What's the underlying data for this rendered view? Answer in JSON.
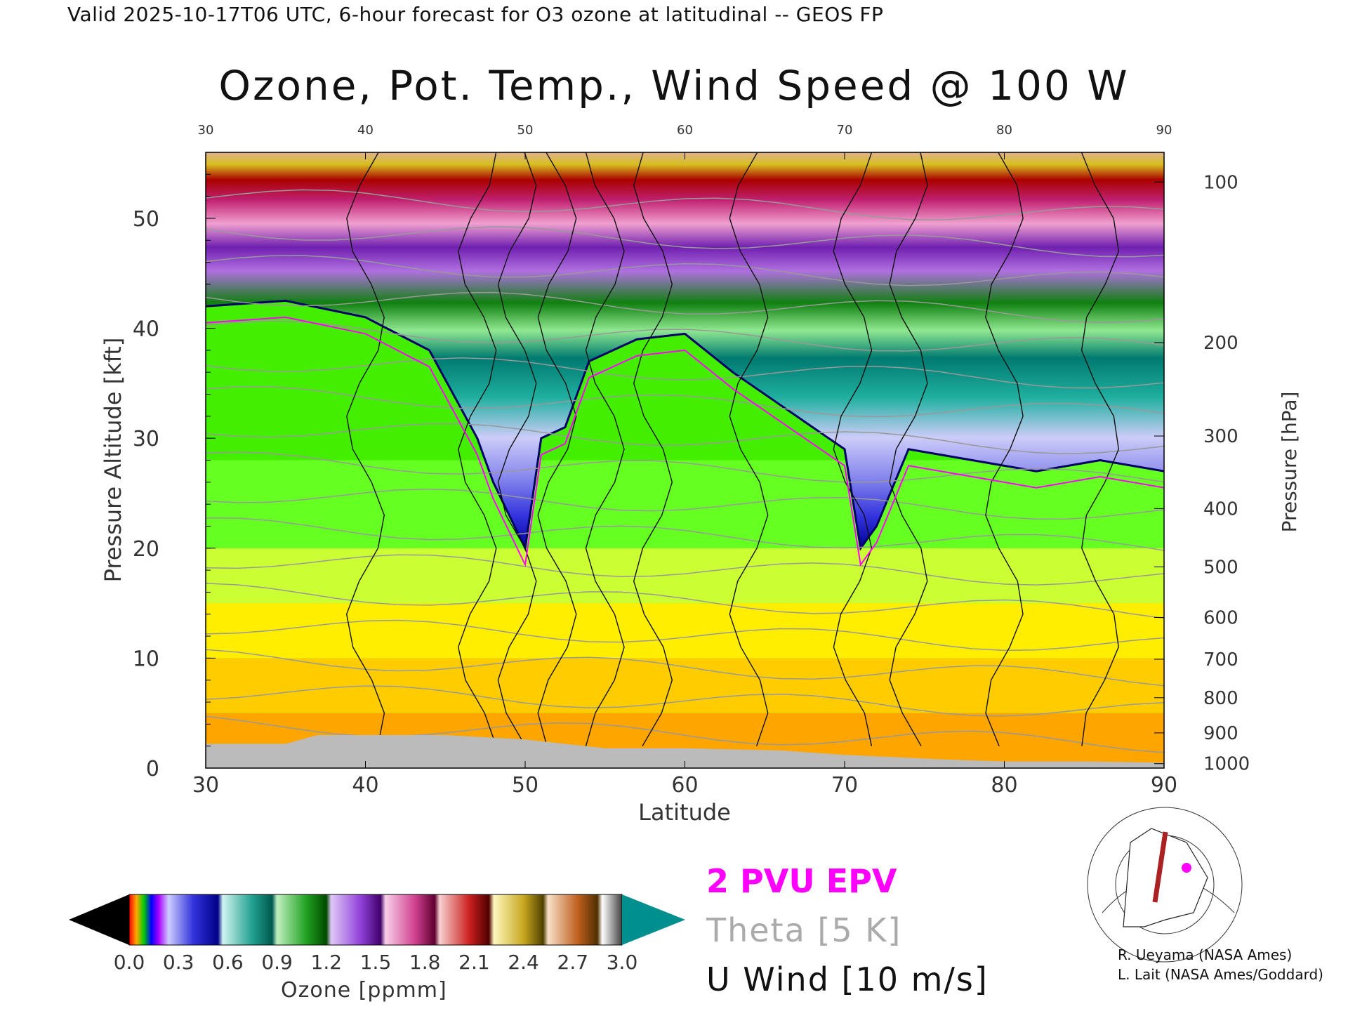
{
  "header": {
    "valid_line": "Valid 2025-10-17T06 UTC, 6-hour forecast for O3 ozone at latitudinal -- GEOS FP"
  },
  "chart_data": {
    "type": "heatmap",
    "title": "Ozone, Pot. Temp., Wind Speed @ 100 W",
    "xlabel": "Latitude",
    "ylabel": "Pressure Altitude [kft]",
    "y2label": "Pressure [hPa]",
    "xlim": [
      30,
      90
    ],
    "ylim": [
      0,
      56
    ],
    "x_ticks": [
      30,
      40,
      50,
      60,
      70,
      80,
      90
    ],
    "y_ticks": [
      0,
      10,
      20,
      30,
      40,
      50
    ],
    "pressure_ticks": [
      {
        "hpa": "100",
        "kft": 53.3
      },
      {
        "hpa": "200",
        "kft": 38.7
      },
      {
        "hpa": "300",
        "kft": 30.2
      },
      {
        "hpa": "400",
        "kft": 23.6
      },
      {
        "hpa": "500",
        "kft": 18.3
      },
      {
        "hpa": "600",
        "kft": 13.7
      },
      {
        "hpa": "700",
        "kft": 9.9
      },
      {
        "hpa": "800",
        "kft": 6.4
      },
      {
        "hpa": "900",
        "kft": 3.2
      },
      {
        "hpa": "1000",
        "kft": 0.4
      }
    ],
    "colorbar": {
      "label": "Ozone [ppmm]",
      "min": 0.0,
      "max": 3.0,
      "tick_labels": [
        "0.0",
        "0.3",
        "0.6",
        "0.9",
        "1.2",
        "1.5",
        "1.8",
        "2.1",
        "2.4",
        "2.7",
        "3.0"
      ]
    },
    "tropopause_kft": [
      {
        "lat": 30,
        "kft": 42
      },
      {
        "lat": 35,
        "kft": 42.5
      },
      {
        "lat": 40,
        "kft": 41
      },
      {
        "lat": 44,
        "kft": 38
      },
      {
        "lat": 47,
        "kft": 30
      },
      {
        "lat": 48,
        "kft": 26
      },
      {
        "lat": 50,
        "kft": 20
      },
      {
        "lat": 51,
        "kft": 30
      },
      {
        "lat": 52.5,
        "kft": 31
      },
      {
        "lat": 54,
        "kft": 37
      },
      {
        "lat": 57,
        "kft": 39
      },
      {
        "lat": 60,
        "kft": 39.5
      },
      {
        "lat": 63,
        "kft": 36
      },
      {
        "lat": 66,
        "kft": 33
      },
      {
        "lat": 69,
        "kft": 30
      },
      {
        "lat": 70,
        "kft": 29
      },
      {
        "lat": 71,
        "kft": 20
      },
      {
        "lat": 72,
        "kft": 22
      },
      {
        "lat": 74,
        "kft": 29
      },
      {
        "lat": 78,
        "kft": 28
      },
      {
        "lat": 82,
        "kft": 27
      },
      {
        "lat": 86,
        "kft": 28
      },
      {
        "lat": 90,
        "kft": 27
      }
    ],
    "legend": [
      {
        "label": "2 PVU EPV",
        "color": "#ff00ff"
      },
      {
        "label": "Theta [5 K]",
        "color": "#aaaaaa"
      },
      {
        "label": "U Wind [10 m/s]",
        "color": "#111111"
      }
    ]
  },
  "credits": [
    "R. Ueyama (NASA Ames)",
    "L. Lait (NASA Ames/Goddard)"
  ]
}
